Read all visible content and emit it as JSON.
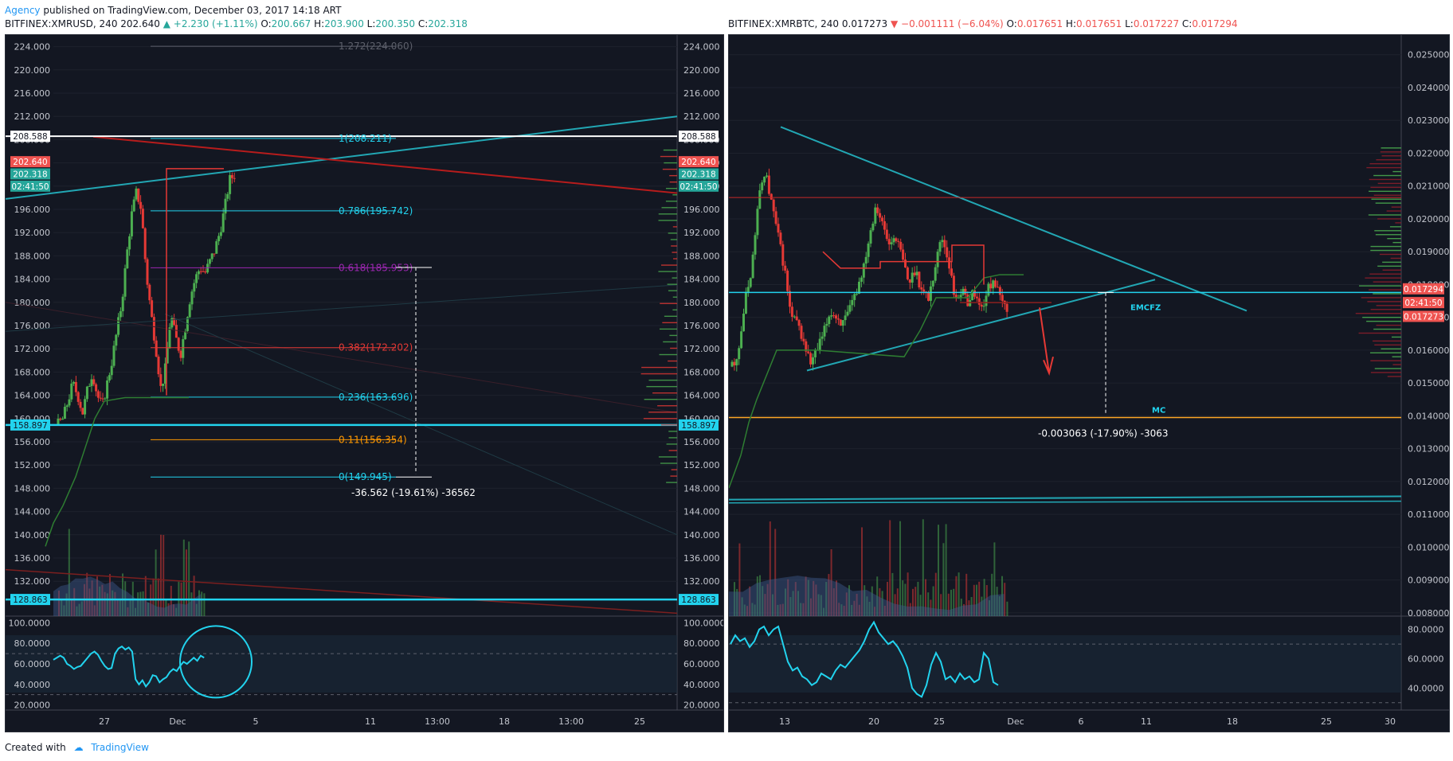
{
  "header": {
    "user": "Agency",
    "text": "published on TradingView.com, December 03, 2017 14:18 ART"
  },
  "footer": {
    "created": "Created with",
    "brand": "TradingView"
  },
  "colors": {
    "bg": "#131722",
    "up": "#26a69a",
    "down": "#ef5350",
    "cyan": "#22d3ee",
    "grid": "#1e222d",
    "axis": "#c3c6ce"
  },
  "chart_data": [
    {
      "type": "candlestick",
      "symbol": "BITFINEX:XMRUSD, 240",
      "last": "202.640",
      "change": "+2.230 (+1.11%)",
      "ohlc": {
        "O": "200.667",
        "H": "203.900",
        "L": "200.350",
        "C": "202.318"
      },
      "ylim": [
        126,
        226
      ],
      "yticks": [
        "224.000",
        "220.000",
        "216.000",
        "212.000",
        "208.000",
        "204.000",
        "200.000",
        "196.000",
        "192.000",
        "188.000",
        "184.000",
        "180.000",
        "176.000",
        "172.000",
        "168.000",
        "164.000",
        "160.000",
        "156.000",
        "152.000",
        "148.000",
        "144.000",
        "140.000",
        "136.000",
        "132.000"
      ],
      "xticks": [
        "27",
        "Dec",
        "5",
        "11",
        "13:00",
        "18",
        "13:00",
        "25"
      ],
      "price_tags": [
        {
          "value": "208.588",
          "color": "#ffffff",
          "text_color": "#131722"
        },
        {
          "value": "202.640",
          "color": "#ef5350",
          "text_color": "#ffffff"
        },
        {
          "value": "202.318",
          "color": "#26a69a",
          "text_color": "#ffffff"
        },
        {
          "value": "02:41:50",
          "color": "#26a69a",
          "text_color": "#ffffff"
        },
        {
          "value": "158.897",
          "color": "#22d3ee",
          "text_color": "#131722"
        },
        {
          "value": "128.863",
          "color": "#22d3ee",
          "text_color": "#131722"
        }
      ],
      "fib_levels": [
        {
          "label": "1.272(224.060)",
          "value": 224.06,
          "color": "#5d606b"
        },
        {
          "label": "1(208.211)",
          "value": 208.211,
          "color": "#22d3ee"
        },
        {
          "label": "0.786(195.742)",
          "value": 195.742,
          "color": "#22d3ee"
        },
        {
          "label": "0.618(185.953)",
          "value": 185.953,
          "color": "#9c27b0"
        },
        {
          "label": "0.382(172.202)",
          "value": 172.202,
          "color": "#e53935"
        },
        {
          "label": "0.236(163.696)",
          "value": 163.696,
          "color": "#22d3ee"
        },
        {
          "label": "0.11(156.354)",
          "value": 156.354,
          "color": "#ff9800"
        },
        {
          "label": "0(149.945)",
          "value": 149.945,
          "color": "#22d3ee"
        }
      ],
      "measure_label": "-36.562 (-19.61%) -36562",
      "rsi": {
        "ylim": [
          15,
          105
        ],
        "ticks": [
          "100.0000",
          "80.0000",
          "60.0000",
          "40.0000",
          "20.0000"
        ],
        "values": [
          64,
          66,
          68,
          66,
          60,
          58,
          55,
          57,
          58,
          62,
          66,
          70,
          72,
          69,
          63,
          58,
          55,
          56,
          70,
          75,
          77,
          74,
          76,
          72,
          45,
          40,
          44,
          38,
          42,
          49,
          48,
          42,
          45,
          47,
          52,
          55,
          53,
          58,
          62,
          60,
          63,
          66,
          63,
          68,
          66
        ]
      },
      "price_path": [
        159,
        160,
        163,
        166,
        164,
        161,
        165,
        168,
        164,
        162,
        166,
        170,
        175,
        180,
        188,
        195,
        199,
        196,
        185,
        178,
        172,
        165,
        169,
        178,
        174,
        171,
        176,
        181,
        184,
        186,
        185,
        187,
        189,
        192,
        196,
        201,
        202
      ]
    },
    {
      "type": "candlestick",
      "symbol": "BITFINEX:XMRBTC, 240",
      "last": "0.017273",
      "change": "−0.001111 (−6.04%)",
      "ohlc": {
        "O": "0.017651",
        "H": "0.017651",
        "L": "0.017227",
        "C": "0.017294"
      },
      "ylim": [
        0.0079,
        0.0256
      ],
      "yticks": [
        "0.025000",
        "0.024000",
        "0.023000",
        "0.022000",
        "0.021000",
        "0.020000",
        "0.019000",
        "0.018000",
        "0.017000",
        "0.016000",
        "0.015000",
        "0.014000",
        "0.013000",
        "0.012000",
        "0.011000",
        "0.010000",
        "0.009000",
        "0.008000"
      ],
      "xticks": [
        "13",
        "20",
        "25",
        "Dec",
        "6",
        "11",
        "18",
        "25",
        "30"
      ],
      "price_tags": [
        {
          "value": "0.017294",
          "color": "#ef5350",
          "text_color": "#ffffff"
        },
        {
          "value": "02:41:50",
          "color": "#ef5350",
          "text_color": "#ffffff"
        },
        {
          "value": "0.017273",
          "color": "#ef5350",
          "text_color": "#ffffff"
        }
      ],
      "annotations": [
        "EMCFZ",
        "MC"
      ],
      "measure_label": "-0.003063 (-17.90%) -3063",
      "rsi": {
        "ylim": [
          25,
          88
        ],
        "ticks": [
          "80.0000",
          "60.0000",
          "40.0000"
        ],
        "values": [
          70,
          76,
          72,
          74,
          68,
          72,
          80,
          82,
          76,
          80,
          82,
          70,
          58,
          52,
          54,
          48,
          46,
          42,
          44,
          50,
          48,
          46,
          52,
          56,
          54,
          58,
          62,
          66,
          72,
          80,
          85,
          78,
          74,
          70,
          72,
          68,
          62,
          54,
          40,
          36,
          34,
          42,
          56,
          64,
          58,
          46,
          48,
          44,
          50,
          46,
          48,
          44,
          46,
          64,
          60,
          44,
          42
        ]
      },
      "price_path": [
        0.0155,
        0.016,
        0.0175,
        0.0185,
        0.0205,
        0.0215,
        0.0205,
        0.0195,
        0.0185,
        0.017,
        0.0168,
        0.0162,
        0.0156,
        0.016,
        0.0165,
        0.0172,
        0.017,
        0.0168,
        0.0172,
        0.0178,
        0.0185,
        0.0195,
        0.0205,
        0.0198,
        0.0192,
        0.0195,
        0.0188,
        0.018,
        0.0185,
        0.0178,
        0.0176,
        0.0185,
        0.0195,
        0.0188,
        0.0176,
        0.0178,
        0.0175,
        0.0178,
        0.0172,
        0.0178,
        0.0182,
        0.0175,
        0.0173
      ]
    }
  ]
}
